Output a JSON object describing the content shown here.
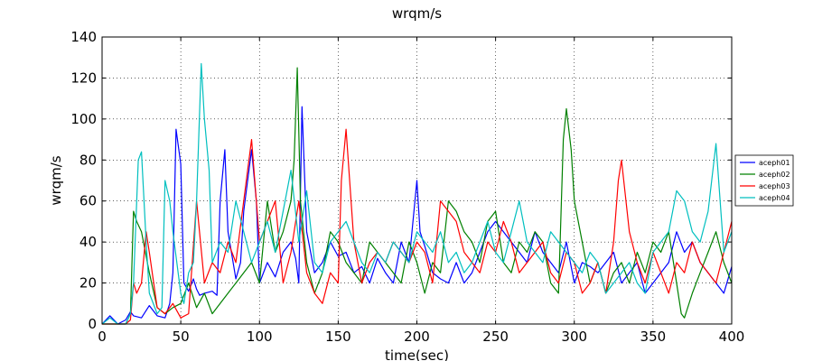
{
  "chart_data": {
    "type": "line",
    "title": "wrqm/s",
    "xlabel": "time(sec)",
    "ylabel": "wrqm/s",
    "xlim": [
      0,
      400
    ],
    "ylim": [
      0,
      140
    ],
    "xticks": [
      0,
      50,
      100,
      150,
      200,
      250,
      300,
      350,
      400
    ],
    "yticks": [
      0,
      20,
      40,
      60,
      80,
      100,
      120,
      140
    ],
    "grid": true,
    "legend_position": "right",
    "series": [
      {
        "name": "aceph01",
        "color": "#0000ff",
        "x": [
          0,
          5,
          10,
          15,
          18,
          20,
          25,
          30,
          35,
          40,
          43,
          45,
          47,
          50,
          52,
          55,
          58,
          60,
          62,
          65,
          70,
          73,
          75,
          78,
          80,
          85,
          88,
          90,
          95,
          98,
          100,
          105,
          110,
          115,
          120,
          123,
          125,
          127,
          130,
          135,
          140,
          145,
          150,
          155,
          160,
          165,
          170,
          175,
          180,
          185,
          190,
          195,
          200,
          202,
          205,
          210,
          215,
          220,
          225,
          230,
          235,
          240,
          245,
          250,
          255,
          260,
          265,
          270,
          275,
          280,
          285,
          290,
          295,
          300,
          305,
          310,
          315,
          320,
          325,
          330,
          335,
          340,
          345,
          350,
          355,
          360,
          365,
          370,
          375,
          380,
          385,
          390,
          395,
          400
        ],
        "y": [
          0,
          4,
          0,
          2,
          6,
          4,
          3,
          9,
          4,
          3,
          10,
          25,
          95,
          78,
          20,
          16,
          22,
          17,
          14,
          15,
          16,
          14,
          60,
          85,
          45,
          22,
          30,
          55,
          85,
          60,
          20,
          30,
          23,
          35,
          40,
          32,
          20,
          106,
          45,
          25,
          30,
          40,
          33,
          35,
          25,
          28,
          20,
          32,
          25,
          20,
          40,
          30,
          70,
          45,
          38,
          25,
          22,
          20,
          30,
          20,
          25,
          35,
          45,
          50,
          45,
          40,
          35,
          30,
          45,
          35,
          30,
          25,
          40,
          20,
          30,
          28,
          25,
          30,
          35,
          20,
          25,
          30,
          15,
          20,
          25,
          30,
          45,
          35,
          40,
          30,
          25,
          20,
          15,
          28
        ]
      },
      {
        "name": "aceph02",
        "color": "#008000",
        "x": [
          0,
          10,
          15,
          18,
          20,
          22,
          25,
          30,
          35,
          40,
          45,
          50,
          55,
          60,
          65,
          70,
          75,
          80,
          85,
          90,
          95,
          100,
          105,
          110,
          115,
          120,
          122,
          124,
          126,
          130,
          135,
          140,
          145,
          150,
          155,
          160,
          165,
          170,
          175,
          180,
          185,
          190,
          195,
          200,
          205,
          210,
          215,
          220,
          225,
          230,
          235,
          240,
          245,
          250,
          255,
          260,
          265,
          270,
          275,
          280,
          285,
          290,
          293,
          295,
          298,
          300,
          305,
          310,
          315,
          320,
          325,
          330,
          335,
          340,
          345,
          350,
          355,
          360,
          365,
          368,
          370,
          375,
          380,
          385,
          390,
          395,
          400
        ],
        "y": [
          0,
          0,
          0,
          5,
          55,
          50,
          45,
          25,
          8,
          5,
          8,
          10,
          20,
          8,
          15,
          5,
          10,
          15,
          20,
          25,
          30,
          20,
          60,
          35,
          45,
          60,
          80,
          125,
          60,
          30,
          15,
          25,
          45,
          40,
          30,
          25,
          20,
          40,
          35,
          30,
          25,
          20,
          40,
          30,
          15,
          30,
          25,
          60,
          55,
          45,
          40,
          30,
          50,
          55,
          30,
          25,
          40,
          35,
          45,
          40,
          20,
          15,
          90,
          105,
          85,
          60,
          40,
          20,
          30,
          15,
          25,
          30,
          20,
          35,
          25,
          40,
          35,
          45,
          20,
          5,
          3,
          15,
          25,
          35,
          45,
          30,
          20
        ]
      },
      {
        "name": "aceph03",
        "color": "#ff0000",
        "x": [
          0,
          10,
          15,
          18,
          20,
          22,
          25,
          28,
          30,
          35,
          40,
          45,
          50,
          55,
          60,
          65,
          70,
          75,
          80,
          85,
          90,
          95,
          100,
          105,
          110,
          115,
          120,
          125,
          130,
          135,
          140,
          145,
          150,
          152,
          155,
          160,
          165,
          170,
          175,
          180,
          185,
          190,
          195,
          200,
          205,
          210,
          215,
          220,
          225,
          230,
          235,
          240,
          245,
          250,
          255,
          260,
          265,
          270,
          275,
          280,
          285,
          290,
          295,
          300,
          305,
          310,
          315,
          320,
          325,
          328,
          330,
          335,
          340,
          345,
          350,
          355,
          360,
          365,
          370,
          375,
          380,
          385,
          390,
          395,
          400
        ],
        "y": [
          0,
          0,
          0,
          2,
          20,
          15,
          20,
          45,
          35,
          8,
          5,
          10,
          3,
          5,
          60,
          20,
          30,
          25,
          40,
          30,
          60,
          90,
          40,
          50,
          60,
          20,
          35,
          60,
          25,
          15,
          10,
          25,
          20,
          70,
          95,
          40,
          20,
          30,
          35,
          30,
          40,
          35,
          30,
          40,
          35,
          20,
          60,
          55,
          50,
          35,
          30,
          25,
          40,
          35,
          50,
          40,
          25,
          30,
          35,
          40,
          25,
          20,
          35,
          30,
          15,
          20,
          30,
          15,
          40,
          70,
          80,
          45,
          30,
          20,
          35,
          25,
          15,
          30,
          25,
          40,
          30,
          25,
          20,
          35,
          50
        ]
      },
      {
        "name": "aceph04",
        "color": "#00bfbf",
        "x": [
          0,
          5,
          10,
          15,
          18,
          20,
          23,
          25,
          28,
          30,
          35,
          38,
          40,
          43,
          45,
          50,
          52,
          55,
          58,
          60,
          63,
          65,
          68,
          70,
          75,
          80,
          85,
          90,
          95,
          100,
          105,
          110,
          115,
          120,
          125,
          130,
          135,
          140,
          145,
          150,
          155,
          160,
          165,
          170,
          175,
          180,
          185,
          190,
          195,
          200,
          205,
          210,
          215,
          220,
          225,
          230,
          235,
          240,
          245,
          250,
          255,
          260,
          265,
          270,
          275,
          280,
          285,
          290,
          295,
          300,
          305,
          310,
          315,
          320,
          325,
          330,
          335,
          340,
          345,
          350,
          355,
          360,
          365,
          370,
          375,
          380,
          385,
          390,
          395,
          400
        ],
        "y": [
          0,
          3,
          0,
          0,
          5,
          20,
          80,
          84,
          40,
          15,
          5,
          8,
          70,
          60,
          45,
          15,
          10,
          25,
          30,
          60,
          127,
          100,
          75,
          30,
          40,
          35,
          60,
          45,
          30,
          40,
          50,
          35,
          55,
          75,
          40,
          65,
          30,
          25,
          40,
          45,
          50,
          40,
          30,
          25,
          35,
          30,
          40,
          35,
          30,
          45,
          40,
          35,
          45,
          30,
          35,
          25,
          30,
          40,
          50,
          35,
          30,
          45,
          60,
          40,
          35,
          30,
          45,
          40,
          35,
          30,
          25,
          35,
          30,
          15,
          20,
          25,
          30,
          20,
          15,
          35,
          40,
          45,
          65,
          60,
          45,
          40,
          55,
          88,
          35,
          45
        ]
      }
    ]
  }
}
